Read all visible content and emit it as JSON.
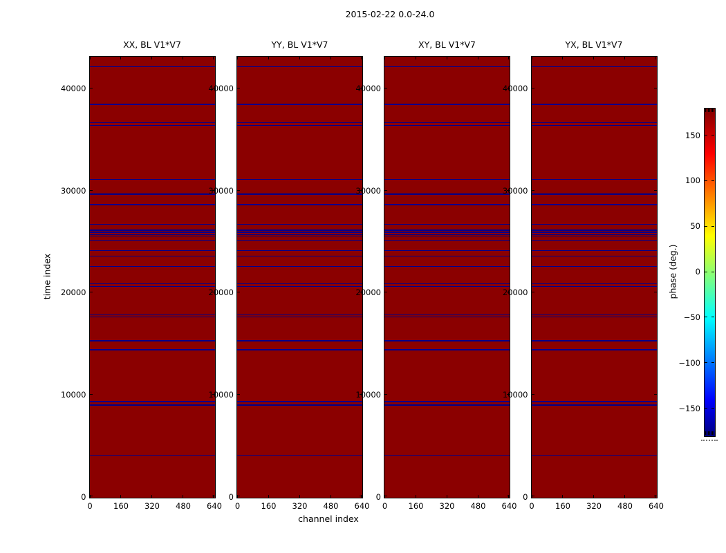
{
  "chart_data": {
    "type": "heatmap",
    "title": "2015-02-22 0.0-24.0",
    "panels": [
      {
        "title": "XX, BL V1*V7"
      },
      {
        "title": "YY, BL V1*V7"
      },
      {
        "title": "XY, BL V1*V7"
      },
      {
        "title": "YX, BL V1*V7"
      }
    ],
    "xlabel": "channel index",
    "ylabel": "time index",
    "x_ticks": [
      0,
      160,
      320,
      480,
      640
    ],
    "y_ticks": [
      0,
      10000,
      20000,
      30000,
      40000
    ],
    "xlim": [
      0,
      640
    ],
    "ylim": [
      0,
      43100
    ],
    "dominant_phase_color": "#8b0000",
    "stripe_color": "#00008b",
    "stripe_time_indices": [
      42100,
      38400,
      36610,
      36340,
      31060,
      29720,
      29560,
      28580,
      26660,
      26090,
      25870,
      25650,
      25490,
      25100,
      24100,
      23550,
      22550,
      20850,
      20580,
      17800,
      17580,
      15270,
      14370,
      9290,
      8960,
      4060
    ],
    "colorbar": {
      "label": "phase (deg.)",
      "ticks": [
        150,
        100,
        50,
        0,
        -50,
        -100,
        -150
      ],
      "vmin": -180,
      "vmax": 180,
      "colormap": "jet",
      "gradient_stops_top_to_bottom": [
        {
          "pos": 0.0,
          "color": "#7f0000"
        },
        {
          "pos": 0.139,
          "color": "#ff0000"
        },
        {
          "pos": 0.389,
          "color": "#ffff00"
        },
        {
          "pos": 0.639,
          "color": "#00ffff"
        },
        {
          "pos": 0.889,
          "color": "#0000ff"
        },
        {
          "pos": 1.0,
          "color": "#00007f"
        }
      ]
    }
  }
}
